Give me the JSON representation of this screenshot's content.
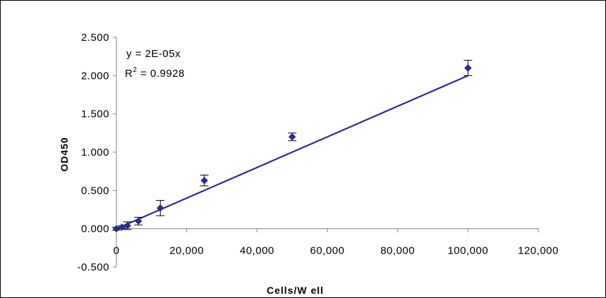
{
  "chart_data": {
    "type": "scatter",
    "title": "",
    "xlabel": "Cells/W ell",
    "ylabel": "OD450",
    "xlim": [
      0,
      120000
    ],
    "ylim": [
      -0.5,
      2.5
    ],
    "x_ticks": [
      0,
      20000,
      40000,
      60000,
      80000,
      100000,
      120000
    ],
    "x_tick_labels": [
      "0",
      "20,000",
      "40,000",
      "60,000",
      "80,000",
      "100,000",
      "120,000"
    ],
    "y_ticks": [
      -0.5,
      0,
      0.5,
      1,
      1.5,
      2,
      2.5
    ],
    "y_tick_labels": [
      "-0.500",
      "0.000",
      "0.500",
      "1.000",
      "1.500",
      "2.000",
      "2.500"
    ],
    "grid": false,
    "marker": "diamond",
    "colors": {
      "series": "#2b2b8c",
      "trendline": "#2b2b8c",
      "error_bars": "#000000"
    },
    "series": [
      {
        "points": [
          {
            "x": 0,
            "y": 0.0,
            "err": 0.02
          },
          {
            "x": 1563,
            "y": 0.02,
            "err": 0.02
          },
          {
            "x": 3125,
            "y": 0.04,
            "err": 0.05
          },
          {
            "x": 6250,
            "y": 0.1,
            "err": 0.05
          },
          {
            "x": 12500,
            "y": 0.27,
            "err": 0.1
          },
          {
            "x": 25000,
            "y": 0.63,
            "err": 0.07
          },
          {
            "x": 50000,
            "y": 1.2,
            "err": 0.05
          },
          {
            "x": 100000,
            "y": 2.1,
            "err": 0.1
          }
        ]
      }
    ],
    "trendline": {
      "type": "linear",
      "slope": 2e-05,
      "intercept": 0,
      "x_range": [
        0,
        100000
      ],
      "equation_text": "y = 2E-05x",
      "r2_prefix": "R",
      "r2_sup": "2",
      "r2_text": " = 0.9928"
    }
  }
}
